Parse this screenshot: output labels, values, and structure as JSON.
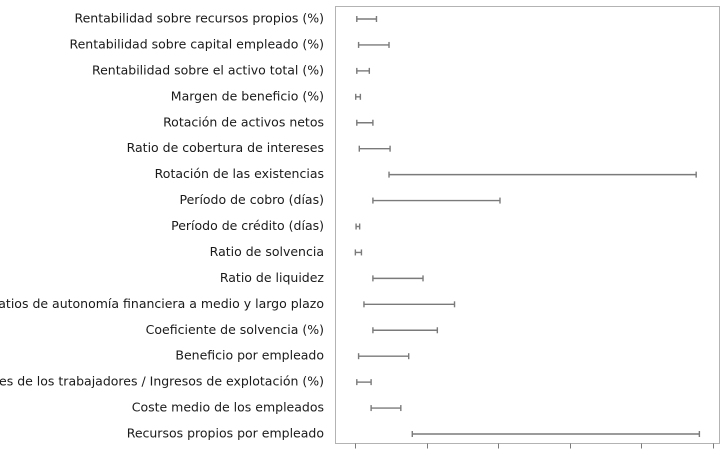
{
  "chart_data": {
    "type": "range",
    "title": "",
    "xlabel": "",
    "ylabel": "",
    "grid": false,
    "legend": "none",
    "xlim": [
      0,
      100
    ],
    "x_ticks": [
      0,
      20,
      40,
      60,
      80,
      100
    ],
    "colors": {
      "range": "#7a7a7a",
      "frame": "#b3b3b3",
      "text": "#1a1a1a"
    },
    "categories": [
      "Rentabilidad sobre recursos propios (%)",
      "Rentabilidad sobre capital empleado (%)",
      "Rentabilidad sobre el activo total (%)",
      "Margen de beneficio (%)",
      "Rotación de activos netos",
      "Ratio de cobertura de intereses",
      "Rotación de las existencias",
      "Período de cobro (días)",
      "Período de crédito (días)",
      "Ratio de solvencia",
      "Ratio de liquidez",
      "Ratios de autonomía financiera a medio y largo plazo",
      "Coeficiente de solvencia (%)",
      "Beneficio por empleado",
      "Costes de los trabajadores / Ingresos de explotación (%)",
      "Coste medio de los empleados",
      "Recursos propios por empleado"
    ],
    "ranges": [
      {
        "low": 0.5,
        "high": 6.0
      },
      {
        "low": 1.0,
        "high": 9.5
      },
      {
        "low": 0.5,
        "high": 4.0
      },
      {
        "low": 0.2,
        "high": 1.5
      },
      {
        "low": 0.5,
        "high": 5.0
      },
      {
        "low": 1.2,
        "high": 9.8
      },
      {
        "low": 9.5,
        "high": 95.3
      },
      {
        "low": 5.0,
        "high": 40.5
      },
      {
        "low": 0.3,
        "high": 1.3
      },
      {
        "low": 0.1,
        "high": 1.8
      },
      {
        "low": 5.0,
        "high": 19.0
      },
      {
        "low": 2.5,
        "high": 27.8
      },
      {
        "low": 5.0,
        "high": 23.0
      },
      {
        "low": 1.0,
        "high": 15.0
      },
      {
        "low": 0.5,
        "high": 4.5
      },
      {
        "low": 4.5,
        "high": 12.8
      },
      {
        "low": 16.0,
        "high": 96.2
      }
    ]
  }
}
